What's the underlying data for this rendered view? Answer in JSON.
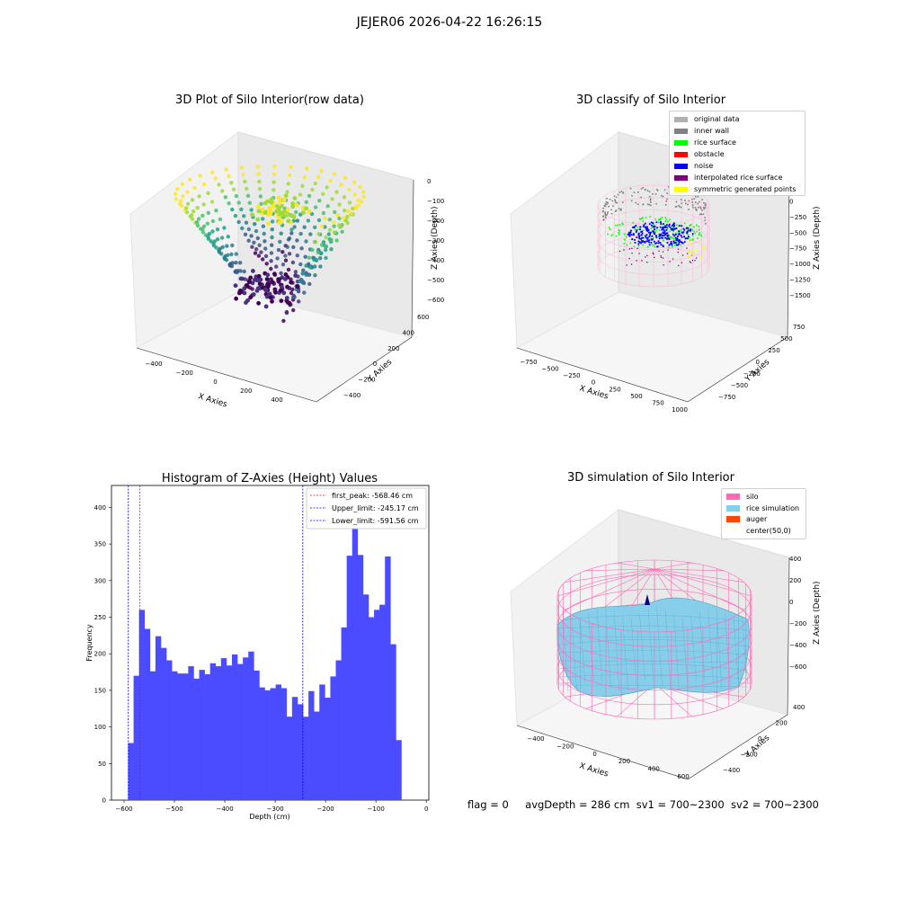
{
  "figure_title": "JEJER06 2026-04-22 16:26:15",
  "footer": {
    "flag": "flag = 0",
    "avg_depth": "avgDepth = 286 cm",
    "sv1": "sv1 = 700~2300",
    "sv2": "sv2 = 700~2300"
  },
  "panels": {
    "raw": {
      "title": "3D Plot of Silo Interior(row data)",
      "xlabel": "X Axies",
      "ylabel": "Y Axies",
      "zlabel": "Z Axies (Depth)",
      "xticks": [
        "−400",
        "−200",
        "0",
        "200",
        "400"
      ],
      "yticks": [
        "−400",
        "−200",
        "0",
        "200",
        "400",
        "600"
      ],
      "zticks": [
        "0",
        "−100",
        "−200",
        "−300",
        "−400",
        "−500",
        "−600"
      ],
      "colormap": "viridis"
    },
    "classify": {
      "title": "3D classify of Silo Interior",
      "xlabel": "X Axies",
      "ylabel": "Y Axies",
      "zlabel": "Z Axies (Depth)",
      "xticks": [
        "−750",
        "−500",
        "−250",
        "0",
        "250",
        "500",
        "750",
        "1000"
      ],
      "yticks": [
        "−750",
        "−500",
        "−250",
        "0",
        "250",
        "500",
        "750"
      ],
      "zticks": [
        "250",
        "0",
        "−250",
        "−500",
        "−750",
        "−1000",
        "−1250",
        "−1500"
      ],
      "legend": [
        {
          "label": "original data",
          "color": "#b0b0b0"
        },
        {
          "label": "inner wall",
          "color": "#808080"
        },
        {
          "label": "rice surface",
          "color": "#00ff00"
        },
        {
          "label": "obstacle",
          "color": "#ff0000"
        },
        {
          "label": "noise",
          "color": "#0000ff"
        },
        {
          "label": "interpolated rice surface",
          "color": "#800080"
        },
        {
          "label": "symmetric generated points",
          "color": "#ffff00"
        }
      ]
    },
    "simulation": {
      "title": "3D simulation of Silo Interior",
      "xlabel": "X Axies",
      "ylabel": "Y Axies",
      "zlabel": "Z Axies (Depth)",
      "xticks": [
        "−400",
        "−200",
        "0",
        "200",
        "400",
        "600"
      ],
      "yticks": [
        "−400",
        "−200",
        "0",
        "200",
        "400"
      ],
      "zticks": [
        "400",
        "200",
        "0",
        "−200",
        "−400",
        "−600"
      ],
      "legend": [
        {
          "label": "silo",
          "color": "#ff69b4"
        },
        {
          "label": "rice simulation",
          "color": "#87ceeb"
        },
        {
          "label": "auger",
          "color": "#ff4500"
        },
        {
          "label": "center(50,0)",
          "color": "#ffffff"
        }
      ]
    }
  },
  "chart_data": [
    {
      "type": "bar",
      "title": "Histogram of Z-Axies (Height) Values",
      "xlabel": "Depth (cm)",
      "ylabel": "Frequency",
      "xlim": [
        -625,
        5
      ],
      "ylim": [
        0,
        430
      ],
      "xticks": [
        -600,
        -500,
        -400,
        -300,
        -200,
        -100,
        0
      ],
      "yticks": [
        0,
        50,
        100,
        150,
        200,
        250,
        300,
        350,
        400
      ],
      "bin_start": -592,
      "bin_width": 10.85,
      "bar_color": "#4b4bff",
      "values": [
        78,
        170,
        260,
        234,
        176,
        224,
        208,
        191,
        176,
        173,
        173,
        183,
        166,
        178,
        172,
        187,
        183,
        194,
        184,
        199,
        186,
        195,
        203,
        177,
        154,
        150,
        153,
        158,
        153,
        114,
        141,
        131,
        114,
        149,
        121,
        158,
        140,
        169,
        191,
        236,
        334,
        410,
        335,
        281,
        250,
        260,
        267,
        333,
        213,
        82
      ],
      "vlines": [
        {
          "label": "first_peak: -568.46 cm",
          "x": -568.46,
          "color": "#ff0000"
        },
        {
          "label": "Upper_limit: -245.17 cm",
          "x": -245.17,
          "color": "#0000ff"
        },
        {
          "label": "Lower_limit: -591.56 cm",
          "x": -591.56,
          "color": "#0000ff"
        }
      ],
      "legend_position": "upper right"
    }
  ]
}
